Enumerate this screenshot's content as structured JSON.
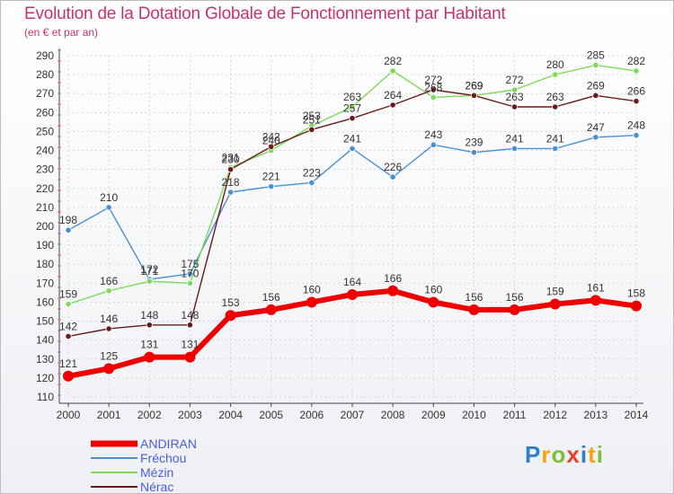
{
  "title": "Evolution de la Dotation Globale de Fonctionnement par Habitant",
  "subtitle": "(en € et par an)",
  "logo": {
    "text": "Proxiti",
    "colors": [
      "#e8412c",
      "#f3a41a",
      "#2f7fc9",
      "#7bbf3c"
    ]
  },
  "chart_data": {
    "type": "line",
    "x": [
      "2000",
      "2001",
      "2002",
      "2003",
      "2004",
      "2005",
      "2006",
      "2007",
      "2008",
      "2009",
      "2010",
      "2011",
      "2012",
      "2013",
      "2014"
    ],
    "ylim": [
      110,
      290
    ],
    "yticks": [
      110,
      120,
      130,
      140,
      150,
      160,
      170,
      180,
      190,
      200,
      210,
      220,
      230,
      240,
      250,
      260,
      270,
      280,
      290
    ],
    "grid": true,
    "legend_position": "bottom-left",
    "series": [
      {
        "name": "ANDIRAN",
        "color": "#ee0000",
        "values": [
          121,
          125,
          131,
          131,
          153,
          156,
          160,
          164,
          166,
          160,
          156,
          156,
          159,
          161,
          158
        ]
      },
      {
        "name": "Fréchou",
        "color": "#4a8fd0",
        "values": [
          198,
          210,
          172,
          175,
          218,
          221,
          223,
          241,
          226,
          243,
          239,
          241,
          241,
          247,
          248
        ]
      },
      {
        "name": "Mézin",
        "color": "#7ed957",
        "values": [
          159,
          166,
          171,
          170,
          231,
          240,
          253,
          263,
          282,
          268,
          269,
          272,
          280,
          285,
          282
        ]
      },
      {
        "name": "Nérac",
        "color": "#6b1a1a",
        "values": [
          142,
          146,
          148,
          148,
          230,
          242,
          251,
          257,
          264,
          272,
          269,
          263,
          263,
          269,
          266
        ]
      }
    ]
  }
}
